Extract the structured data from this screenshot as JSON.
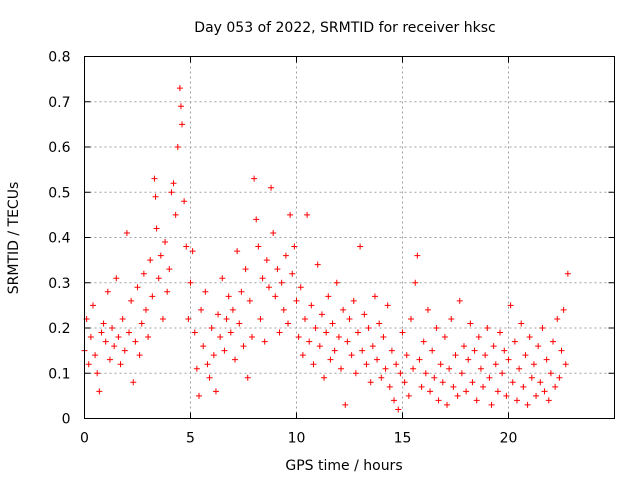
{
  "chart_data": {
    "type": "scatter",
    "title": "Day 053 of 2022, SRMTID for receiver hksc",
    "xlabel": "GPS time / hours",
    "ylabel": "SRMTID / TECUs",
    "xlim": [
      0,
      25
    ],
    "ylim": [
      0,
      0.8
    ],
    "x_ticks": [
      0,
      5,
      10,
      15,
      20
    ],
    "y_ticks": [
      0,
      0.1,
      0.2,
      0.3,
      0.4,
      0.5,
      0.6,
      0.7,
      0.8
    ],
    "x_tick_labels": [
      "0",
      "5",
      "10",
      "15",
      "20"
    ],
    "y_tick_labels": [
      "0",
      "0.1",
      "0.2",
      "0.3",
      "0.4",
      "0.5",
      "0.6",
      "0.7",
      "0.8"
    ],
    "grid": true,
    "marker": "+",
    "color": "#ff0000",
    "series": [
      {
        "name": "SRMTID",
        "points": [
          [
            0.0,
            0.15
          ],
          [
            0.1,
            0.22
          ],
          [
            0.2,
            0.12
          ],
          [
            0.3,
            0.18
          ],
          [
            0.4,
            0.25
          ],
          [
            0.5,
            0.14
          ],
          [
            0.6,
            0.1
          ],
          [
            0.7,
            0.06
          ],
          [
            0.8,
            0.19
          ],
          [
            0.9,
            0.21
          ],
          [
            1.0,
            0.17
          ],
          [
            1.1,
            0.28
          ],
          [
            1.2,
            0.13
          ],
          [
            1.3,
            0.2
          ],
          [
            1.4,
            0.16
          ],
          [
            1.5,
            0.31
          ],
          [
            1.6,
            0.18
          ],
          [
            1.7,
            0.12
          ],
          [
            1.8,
            0.22
          ],
          [
            1.9,
            0.15
          ],
          [
            2.0,
            0.41
          ],
          [
            2.1,
            0.19
          ],
          [
            2.2,
            0.26
          ],
          [
            2.3,
            0.08
          ],
          [
            2.4,
            0.17
          ],
          [
            2.5,
            0.29
          ],
          [
            2.6,
            0.14
          ],
          [
            2.7,
            0.21
          ],
          [
            2.8,
            0.32
          ],
          [
            2.9,
            0.24
          ],
          [
            3.0,
            0.18
          ],
          [
            3.1,
            0.35
          ],
          [
            3.2,
            0.27
          ],
          [
            3.3,
            0.53
          ],
          [
            3.35,
            0.49
          ],
          [
            3.4,
            0.42
          ],
          [
            3.5,
            0.31
          ],
          [
            3.6,
            0.36
          ],
          [
            3.7,
            0.22
          ],
          [
            3.8,
            0.39
          ],
          [
            3.9,
            0.28
          ],
          [
            4.0,
            0.33
          ],
          [
            4.1,
            0.5
          ],
          [
            4.2,
            0.52
          ],
          [
            4.3,
            0.45
          ],
          [
            4.4,
            0.6
          ],
          [
            4.5,
            0.73
          ],
          [
            4.55,
            0.69
          ],
          [
            4.6,
            0.65
          ],
          [
            4.7,
            0.48
          ],
          [
            4.8,
            0.38
          ],
          [
            4.9,
            0.22
          ],
          [
            5.0,
            0.3
          ],
          [
            5.1,
            0.37
          ],
          [
            5.2,
            0.19
          ],
          [
            5.3,
            0.11
          ],
          [
            5.4,
            0.05
          ],
          [
            5.5,
            0.24
          ],
          [
            5.6,
            0.16
          ],
          [
            5.7,
            0.28
          ],
          [
            5.8,
            0.12
          ],
          [
            5.9,
            0.09
          ],
          [
            6.0,
            0.2
          ],
          [
            6.1,
            0.14
          ],
          [
            6.2,
            0.06
          ],
          [
            6.3,
            0.23
          ],
          [
            6.4,
            0.18
          ],
          [
            6.5,
            0.31
          ],
          [
            6.6,
            0.15
          ],
          [
            6.7,
            0.22
          ],
          [
            6.8,
            0.27
          ],
          [
            6.9,
            0.19
          ],
          [
            7.0,
            0.24
          ],
          [
            7.1,
            0.13
          ],
          [
            7.2,
            0.37
          ],
          [
            7.3,
            0.21
          ],
          [
            7.4,
            0.28
          ],
          [
            7.5,
            0.16
          ],
          [
            7.6,
            0.33
          ],
          [
            7.7,
            0.09
          ],
          [
            7.8,
            0.26
          ],
          [
            7.9,
            0.18
          ],
          [
            8.0,
            0.53
          ],
          [
            8.1,
            0.44
          ],
          [
            8.2,
            0.38
          ],
          [
            8.3,
            0.22
          ],
          [
            8.4,
            0.31
          ],
          [
            8.5,
            0.17
          ],
          [
            8.6,
            0.35
          ],
          [
            8.7,
            0.29
          ],
          [
            8.8,
            0.51
          ],
          [
            8.9,
            0.41
          ],
          [
            9.0,
            0.27
          ],
          [
            9.1,
            0.33
          ],
          [
            9.2,
            0.19
          ],
          [
            9.3,
            0.3
          ],
          [
            9.4,
            0.24
          ],
          [
            9.5,
            0.36
          ],
          [
            9.6,
            0.21
          ],
          [
            9.7,
            0.45
          ],
          [
            9.8,
            0.32
          ],
          [
            9.9,
            0.38
          ],
          [
            10.0,
            0.26
          ],
          [
            10.1,
            0.18
          ],
          [
            10.2,
            0.29
          ],
          [
            10.3,
            0.14
          ],
          [
            10.4,
            0.22
          ],
          [
            10.5,
            0.45
          ],
          [
            10.6,
            0.17
          ],
          [
            10.7,
            0.25
          ],
          [
            10.8,
            0.12
          ],
          [
            10.9,
            0.2
          ],
          [
            11.0,
            0.34
          ],
          [
            11.1,
            0.16
          ],
          [
            11.2,
            0.23
          ],
          [
            11.3,
            0.09
          ],
          [
            11.4,
            0.19
          ],
          [
            11.5,
            0.27
          ],
          [
            11.6,
            0.13
          ],
          [
            11.7,
            0.21
          ],
          [
            11.8,
            0.15
          ],
          [
            11.9,
            0.3
          ],
          [
            12.0,
            0.18
          ],
          [
            12.1,
            0.11
          ],
          [
            12.2,
            0.24
          ],
          [
            12.3,
            0.03
          ],
          [
            12.4,
            0.17
          ],
          [
            12.5,
            0.22
          ],
          [
            12.6,
            0.14
          ],
          [
            12.7,
            0.26
          ],
          [
            12.8,
            0.1
          ],
          [
            12.9,
            0.19
          ],
          [
            13.0,
            0.38
          ],
          [
            13.1,
            0.15
          ],
          [
            13.2,
            0.23
          ],
          [
            13.3,
            0.12
          ],
          [
            13.4,
            0.2
          ],
          [
            13.5,
            0.08
          ],
          [
            13.6,
            0.16
          ],
          [
            13.7,
            0.27
          ],
          [
            13.8,
            0.13
          ],
          [
            13.9,
            0.21
          ],
          [
            14.0,
            0.09
          ],
          [
            14.1,
            0.18
          ],
          [
            14.2,
            0.11
          ],
          [
            14.3,
            0.25
          ],
          [
            14.4,
            0.07
          ],
          [
            14.5,
            0.15
          ],
          [
            14.6,
            0.04
          ],
          [
            14.7,
            0.12
          ],
          [
            14.8,
            0.02
          ],
          [
            14.9,
            0.1
          ],
          [
            15.0,
            0.19
          ],
          [
            15.1,
            0.08
          ],
          [
            15.2,
            0.14
          ],
          [
            15.3,
            0.05
          ],
          [
            15.4,
            0.22
          ],
          [
            15.5,
            0.11
          ],
          [
            15.6,
            0.3
          ],
          [
            15.7,
            0.36
          ],
          [
            15.8,
            0.13
          ],
          [
            15.9,
            0.07
          ],
          [
            16.0,
            0.17
          ],
          [
            16.1,
            0.1
          ],
          [
            16.2,
            0.24
          ],
          [
            16.3,
            0.06
          ],
          [
            16.4,
            0.15
          ],
          [
            16.5,
            0.09
          ],
          [
            16.6,
            0.2
          ],
          [
            16.7,
            0.04
          ],
          [
            16.8,
            0.12
          ],
          [
            16.9,
            0.08
          ],
          [
            17.0,
            0.18
          ],
          [
            17.1,
            0.03
          ],
          [
            17.2,
            0.11
          ],
          [
            17.3,
            0.22
          ],
          [
            17.4,
            0.07
          ],
          [
            17.5,
            0.14
          ],
          [
            17.6,
            0.05
          ],
          [
            17.7,
            0.26
          ],
          [
            17.8,
            0.1
          ],
          [
            17.9,
            0.16
          ],
          [
            18.0,
            0.06
          ],
          [
            18.1,
            0.13
          ],
          [
            18.2,
            0.21
          ],
          [
            18.3,
            0.08
          ],
          [
            18.4,
            0.15
          ],
          [
            18.5,
            0.04
          ],
          [
            18.6,
            0.18
          ],
          [
            18.7,
            0.11
          ],
          [
            18.8,
            0.07
          ],
          [
            18.9,
            0.14
          ],
          [
            19.0,
            0.2
          ],
          [
            19.1,
            0.09
          ],
          [
            19.2,
            0.03
          ],
          [
            19.3,
            0.16
          ],
          [
            19.4,
            0.12
          ],
          [
            19.5,
            0.06
          ],
          [
            19.6,
            0.19
          ],
          [
            19.7,
            0.1
          ],
          [
            19.8,
            0.15
          ],
          [
            19.9,
            0.05
          ],
          [
            20.0,
            0.13
          ],
          [
            20.1,
            0.25
          ],
          [
            20.2,
            0.08
          ],
          [
            20.3,
            0.17
          ],
          [
            20.4,
            0.04
          ],
          [
            20.5,
            0.11
          ],
          [
            20.6,
            0.21
          ],
          [
            20.7,
            0.07
          ],
          [
            20.8,
            0.14
          ],
          [
            20.9,
            0.03
          ],
          [
            21.0,
            0.18
          ],
          [
            21.1,
            0.09
          ],
          [
            21.2,
            0.12
          ],
          [
            21.3,
            0.05
          ],
          [
            21.4,
            0.16
          ],
          [
            21.5,
            0.08
          ],
          [
            21.6,
            0.2
          ],
          [
            21.7,
            0.06
          ],
          [
            21.8,
            0.13
          ],
          [
            21.9,
            0.04
          ],
          [
            22.0,
            0.1
          ],
          [
            22.1,
            0.17
          ],
          [
            22.2,
            0.07
          ],
          [
            22.3,
            0.22
          ],
          [
            22.4,
            0.09
          ],
          [
            22.5,
            0.15
          ],
          [
            22.6,
            0.24
          ],
          [
            22.7,
            0.12
          ],
          [
            22.8,
            0.32
          ]
        ]
      }
    ]
  }
}
